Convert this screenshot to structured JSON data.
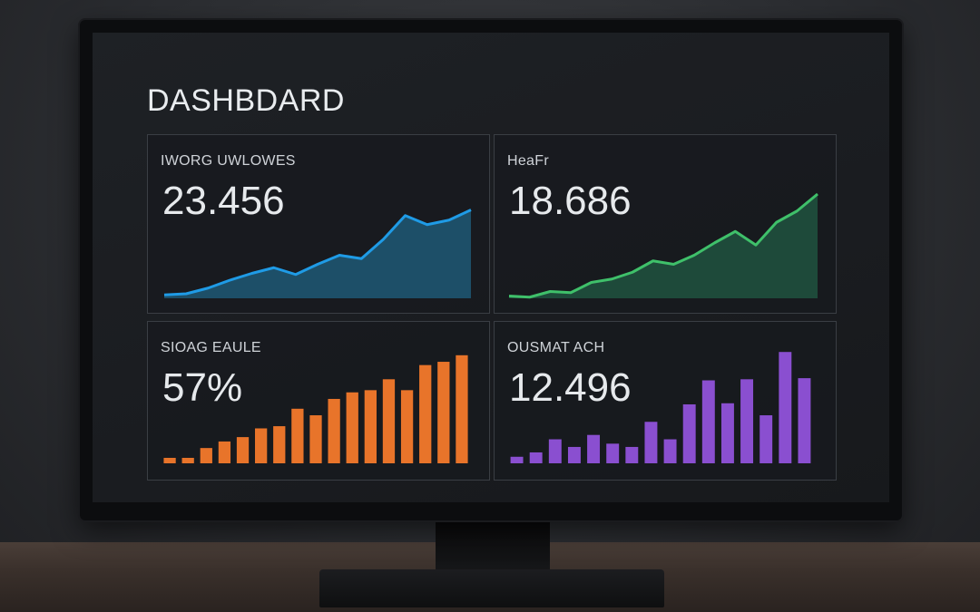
{
  "dashboard": {
    "title": "DASHBDARD",
    "cards": [
      {
        "label": "IWORG UWLOWES",
        "value": "23.456",
        "chart": {
          "type": "area",
          "color": "#1f9be6",
          "fill": "#1d4f68",
          "values": [
            3,
            4,
            9,
            16,
            22,
            27,
            21,
            30,
            38,
            35,
            52,
            73,
            65,
            69,
            78
          ]
        }
      },
      {
        "label": "HeaFr",
        "value": "18.686",
        "chart": {
          "type": "area",
          "color": "#3fc06a",
          "fill": "#1e4a3a",
          "values": [
            2,
            1,
            6,
            5,
            14,
            17,
            23,
            33,
            30,
            38,
            49,
            59,
            47,
            67,
            77,
            92
          ]
        }
      },
      {
        "label": "SIOAG EAULE",
        "value": "57%",
        "chart": {
          "type": "bar",
          "color": "#e8742a",
          "values": [
            5,
            5,
            14,
            20,
            24,
            32,
            34,
            50,
            44,
            59,
            65,
            67,
            77,
            67,
            90,
            93,
            99
          ]
        }
      },
      {
        "label": "OUSMAT ACH",
        "value": "12.496",
        "chart": {
          "type": "bar",
          "color": "#8a4fd0",
          "values": [
            6,
            10,
            22,
            15,
            26,
            18,
            15,
            38,
            22,
            54,
            76,
            55,
            77,
            44,
            102,
            78
          ]
        }
      }
    ]
  }
}
